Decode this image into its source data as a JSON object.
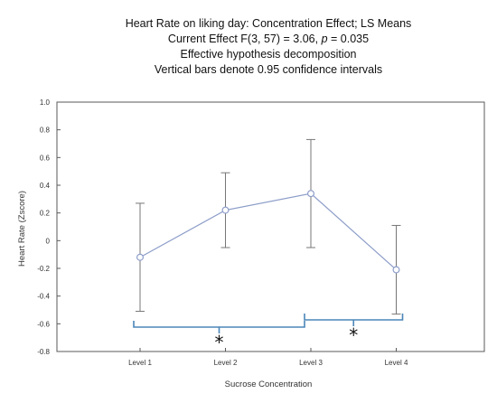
{
  "chart_data": {
    "type": "line",
    "title_lines": [
      "Heart Rate on liking day: Concentration Effect; LS Means",
      "Current Effect F(3, 57) = 3.06, p = 0.035",
      "Effective hypothesis decomposition",
      "Vertical bars denote 0.95 confidence intervals"
    ],
    "xlabel": "Sucrose Concentration",
    "ylabel": "Heart Rate (Zscore)",
    "categories": [
      "Level 1",
      "Level 2",
      "Level 3",
      "Level 4"
    ],
    "series": [
      {
        "values": [
          -0.12,
          0.22,
          0.34,
          -0.21
        ],
        "ci_lower": [
          -0.51,
          -0.05,
          -0.05,
          -0.53
        ],
        "ci_upper": [
          0.27,
          0.49,
          0.73,
          0.11
        ]
      }
    ],
    "ylim": [
      -0.8,
      1.0
    ],
    "y_ticks": [
      "1.0",
      "0.8",
      "0.6",
      "0.4",
      "0.2",
      "0",
      "-0.2",
      "-0.4",
      "-0.6",
      "-0.8"
    ],
    "significance": [
      {
        "from": "Level 1",
        "to": "Level 3",
        "label": "*"
      },
      {
        "from": "Level 3",
        "to": "Level 4",
        "label": "*"
      }
    ],
    "colors": {
      "series": "#8d9dc9",
      "bracket": "#4b86b8",
      "frame": "#5a5a5a"
    },
    "grid": false
  }
}
